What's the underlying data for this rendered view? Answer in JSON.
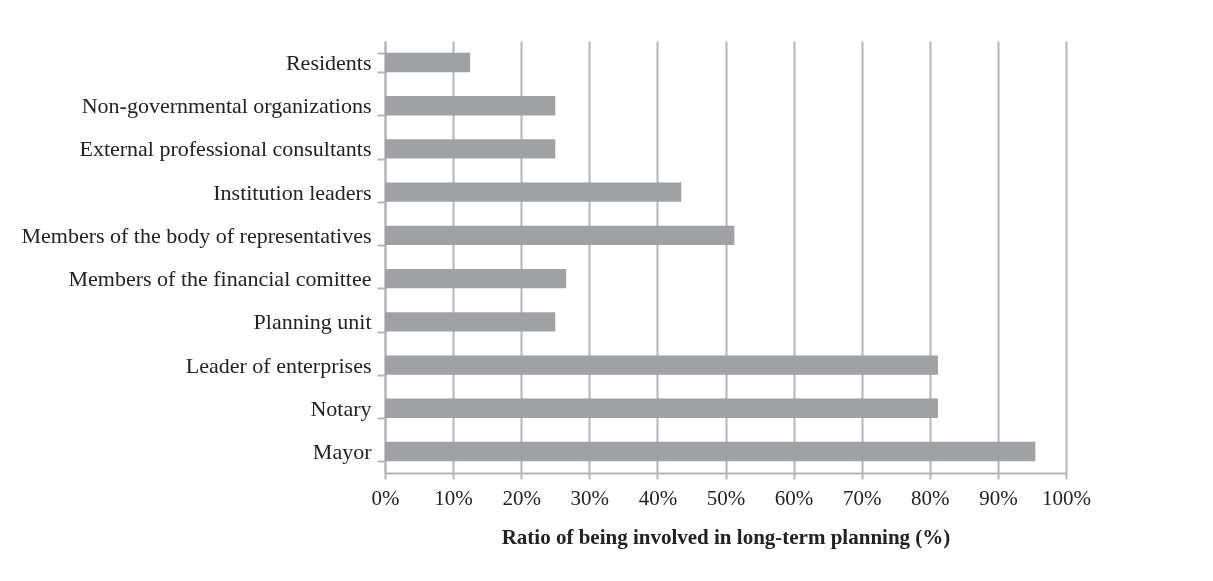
{
  "chart_data": {
    "type": "bar",
    "orientation": "horizontal",
    "xlabel": "Ratio of being involved in long-term planning (%)",
    "categories": [
      "Residents",
      "Non-governmental organizations",
      "External professional consultants",
      "Institution leaders",
      "Members of the body of representatives",
      "Members of the financial comittee",
      "Planning unit",
      "Leader of enterprises",
      "Notary",
      "Mayor"
    ],
    "values": [
      12.5,
      25,
      25,
      43.5,
      51.3,
      26.6,
      25,
      81.2,
      81.2,
      95.5
    ],
    "color": "#a0a1a5",
    "xlim": [
      0,
      100
    ],
    "xticks": [
      {
        "value": 0,
        "label": "0%"
      },
      {
        "value": 10,
        "label": "10%"
      },
      {
        "value": 20,
        "label": "20%"
      },
      {
        "value": 30,
        "label": "30%"
      },
      {
        "value": 40,
        "label": "40%"
      },
      {
        "value": 50,
        "label": "50%"
      },
      {
        "value": 60,
        "label": "60%"
      },
      {
        "value": 70,
        "label": "70%"
      },
      {
        "value": 80,
        "label": "80%"
      },
      {
        "value": 90,
        "label": "90%"
      },
      {
        "value": 100,
        "label": "100%"
      }
    ],
    "grid": "x"
  }
}
